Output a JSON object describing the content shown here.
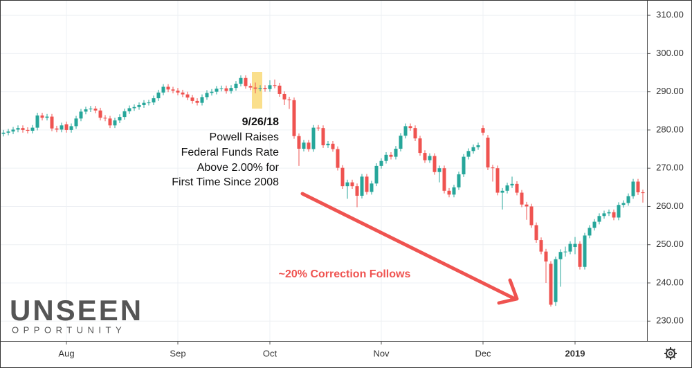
{
  "chart_data": {
    "type": "candlestick",
    "categories": [
      null,
      null,
      null,
      null,
      null,
      null,
      null,
      null,
      null,
      null,
      null,
      null,
      null,
      "Aug",
      null,
      null,
      null,
      null,
      null,
      null,
      null,
      null,
      null,
      null,
      null,
      null,
      null,
      null,
      null,
      null,
      null,
      null,
      null,
      null,
      null,
      null,
      "Sep",
      null,
      null,
      null,
      null,
      null,
      null,
      null,
      null,
      null,
      null,
      null,
      null,
      null,
      null,
      null,
      null,
      null,
      null,
      "Oct",
      null,
      null,
      null,
      null,
      null,
      null,
      null,
      null,
      null,
      null,
      null,
      null,
      null,
      null,
      null,
      null,
      null,
      null,
      null,
      null,
      null,
      null,
      "Nov",
      null,
      null,
      null,
      null,
      null,
      null,
      null,
      null,
      null,
      null,
      null,
      null,
      null,
      null,
      null,
      null,
      null,
      null,
      null,
      null,
      "Dec",
      null,
      null,
      null,
      null,
      null,
      null,
      null,
      null,
      null,
      null,
      null,
      null,
      null,
      null,
      null,
      null,
      null,
      null,
      "2019",
      null,
      null,
      null,
      null,
      null,
      null,
      null,
      null,
      null,
      null,
      null,
      null,
      null,
      null
    ],
    "open": [
      279.0,
      279.3,
      279.6,
      280.1,
      280.5,
      280.0,
      279.8,
      280.6,
      283.8,
      283.2,
      283.5,
      280.4,
      280.1,
      281.5,
      280.0,
      281.0,
      283.0,
      284.8,
      285.4,
      285.6,
      285.1,
      283.2,
      283.0,
      281.2,
      282.5,
      283.4,
      284.9,
      285.7,
      286.0,
      286.5,
      287.1,
      287.2,
      288.3,
      289.8,
      291.3,
      290.6,
      290.3,
      289.8,
      289.3,
      288.5,
      287.6,
      287.1,
      288.6,
      289.7,
      290.0,
      290.8,
      290.9,
      290.2,
      291.0,
      292.1,
      293.6,
      291.5,
      291.1,
      290.8,
      291.0,
      290.7,
      291.7,
      291.6,
      289.4,
      288.0,
      287.8,
      278.4,
      275.1,
      276.7,
      275.0,
      280.6,
      280.5,
      276.0,
      276.4,
      275.0,
      270.1,
      265.3,
      266.3,
      265.3,
      262.8,
      267.8,
      263.8,
      266.0,
      270.6,
      271.9,
      273.5,
      273.0,
      275.1,
      278.5,
      281.0,
      280.5,
      277.8,
      274.0,
      272.1,
      273.2,
      269.0,
      270.0,
      264.1,
      263.1,
      265.0,
      268.4,
      273.0,
      274.5,
      275.5,
      280.5,
      278.0,
      270.2,
      270.0,
      263.6,
      264.1,
      265.5,
      265.9,
      263.6,
      260.5,
      260.0,
      255.1,
      251.2,
      248.2,
      245.0,
      235.0,
      246.2,
      248.1,
      248.2,
      249.4,
      250.2,
      244.2,
      252.4,
      254.4,
      256.0,
      257.5,
      258.2,
      258.5,
      257.1,
      260.4,
      260.9,
      262.7,
      266.5,
      263.7
    ],
    "high": [
      280.0,
      280.3,
      280.8,
      281.2,
      281.2,
      280.7,
      281.3,
      284.5,
      284.5,
      284.2,
      284.2,
      281.1,
      281.9,
      282.2,
      281.7,
      283.7,
      285.5,
      286.1,
      286.3,
      286.3,
      285.8,
      283.9,
      283.7,
      283.2,
      284.1,
      285.6,
      286.4,
      286.7,
      287.2,
      287.8,
      287.9,
      289.0,
      290.5,
      292.0,
      292.0,
      291.3,
      291.0,
      290.5,
      290.0,
      289.2,
      288.3,
      289.3,
      290.4,
      290.7,
      291.5,
      291.6,
      291.6,
      291.7,
      292.8,
      294.3,
      294.3,
      292.2,
      292.4,
      291.7,
      291.7,
      293.0,
      293.2,
      292.3,
      290.1,
      288.7,
      288.5,
      279.1,
      277.4,
      277.4,
      281.3,
      281.3,
      281.2,
      277.1,
      277.1,
      275.7,
      270.8,
      267.0,
      267.0,
      266.0,
      268.5,
      268.5,
      266.7,
      271.3,
      272.6,
      274.2,
      274.2,
      275.8,
      279.2,
      281.7,
      281.7,
      281.2,
      278.5,
      274.7,
      273.9,
      273.9,
      270.7,
      270.7,
      264.8,
      265.7,
      269.1,
      273.7,
      275.2,
      276.2,
      276.7,
      281.2,
      278.7,
      270.9,
      270.7,
      264.8,
      266.2,
      267.8,
      266.6,
      264.3,
      261.2,
      260.7,
      255.8,
      251.9,
      248.9,
      245.7,
      246.9,
      248.8,
      249.5,
      250.9,
      252.0,
      250.9,
      253.1,
      255.1,
      256.7,
      258.2,
      258.9,
      259.2,
      259.2,
      261.1,
      261.6,
      263.4,
      267.2,
      267.2,
      264.4
    ],
    "low": [
      278.3,
      278.6,
      278.9,
      279.4,
      279.3,
      279.1,
      279.1,
      279.9,
      282.5,
      282.5,
      279.7,
      279.4,
      279.4,
      279.3,
      279.3,
      280.3,
      282.3,
      284.1,
      284.7,
      284.4,
      282.5,
      282.3,
      280.5,
      280.5,
      281.8,
      282.7,
      284.2,
      285.0,
      285.3,
      285.8,
      286.4,
      286.5,
      287.6,
      289.1,
      289.9,
      289.6,
      289.1,
      288.6,
      287.8,
      286.9,
      286.4,
      286.4,
      287.9,
      289.0,
      289.3,
      290.1,
      289.5,
      289.5,
      290.3,
      291.4,
      290.8,
      290.4,
      289.6,
      290.1,
      290.0,
      290.0,
      290.9,
      288.7,
      286.5,
      285.5,
      277.7,
      270.6,
      274.4,
      274.3,
      274.3,
      279.8,
      275.3,
      275.3,
      274.3,
      269.4,
      264.6,
      262.0,
      264.6,
      259.8,
      262.1,
      263.1,
      263.1,
      265.3,
      269.9,
      271.2,
      272.3,
      272.3,
      274.4,
      277.8,
      279.8,
      277.1,
      273.3,
      271.4,
      271.4,
      268.3,
      266.3,
      263.4,
      262.4,
      262.4,
      264.3,
      267.7,
      272.3,
      273.8,
      274.8,
      278.6,
      269.5,
      266.5,
      262.9,
      259.2,
      263.4,
      264.8,
      262.9,
      259.8,
      256.5,
      254.4,
      250.5,
      247.5,
      240.0,
      233.8,
      234.0,
      239.0,
      246.9,
      247.5,
      247.5,
      243.5,
      243.5,
      251.7,
      253.7,
      255.3,
      256.8,
      257.5,
      256.4,
      256.4,
      259.7,
      260.2,
      262.0,
      263.0,
      261.0
    ],
    "close": [
      279.3,
      279.6,
      280.1,
      280.5,
      280.0,
      279.8,
      280.6,
      283.8,
      283.2,
      283.5,
      280.4,
      280.1,
      281.2,
      280.0,
      281.0,
      283.0,
      284.8,
      285.4,
      285.6,
      285.1,
      283.2,
      283.0,
      281.2,
      282.5,
      283.4,
      284.9,
      285.7,
      286.0,
      286.5,
      287.1,
      287.2,
      288.3,
      289.8,
      291.3,
      290.6,
      290.3,
      289.8,
      289.3,
      288.5,
      287.6,
      287.1,
      288.6,
      289.7,
      290.0,
      290.8,
      290.9,
      290.2,
      291.0,
      292.1,
      293.6,
      291.5,
      291.1,
      290.8,
      291.0,
      290.7,
      291.7,
      291.6,
      289.4,
      288.0,
      287.8,
      278.4,
      275.1,
      276.7,
      275.0,
      280.6,
      280.5,
      276.0,
      276.4,
      275.0,
      270.1,
      265.3,
      266.3,
      265.3,
      262.8,
      267.8,
      263.8,
      266.0,
      270.6,
      271.9,
      273.5,
      273.0,
      275.1,
      278.5,
      281.0,
      280.5,
      277.8,
      274.0,
      272.1,
      273.2,
      269.0,
      270.0,
      264.1,
      263.1,
      265.0,
      268.4,
      273.0,
      274.5,
      275.5,
      276.0,
      279.3,
      270.2,
      270.0,
      263.6,
      264.1,
      265.5,
      265.9,
      263.6,
      260.5,
      260.0,
      255.1,
      251.2,
      248.2,
      245.6,
      234.3,
      246.2,
      248.1,
      248.2,
      250.2,
      250.2,
      244.2,
      252.4,
      254.4,
      256.0,
      257.5,
      258.2,
      258.5,
      257.1,
      260.4,
      260.9,
      262.7,
      266.5,
      263.7,
      263.5
    ],
    "up_color": "#26a69a",
    "down_color": "#ef5350",
    "ylim": [
      224.8,
      314
    ],
    "yticks": [
      {
        "value": 230,
        "label": "230.00"
      },
      {
        "value": 240,
        "label": "240.00"
      },
      {
        "value": 250,
        "label": "250.00"
      },
      {
        "value": 260,
        "label": "260.00"
      },
      {
        "value": 270,
        "label": "270.00"
      },
      {
        "value": 280,
        "label": "280.00"
      },
      {
        "value": 290,
        "label": "290.00"
      },
      {
        "value": 300,
        "label": "300.00"
      },
      {
        "value": 310,
        "label": "310.00"
      }
    ],
    "grid": true,
    "annotation": {
      "date": "9/26/18",
      "lines": [
        "Powell Raises",
        "Federal Funds Rate",
        "Above 2.00% for",
        "First Time Since 2008"
      ]
    },
    "callout": "~20% Correction Follows"
  },
  "logo": {
    "name": "UNSEEN",
    "tagline": "OPPORTUNITY"
  }
}
